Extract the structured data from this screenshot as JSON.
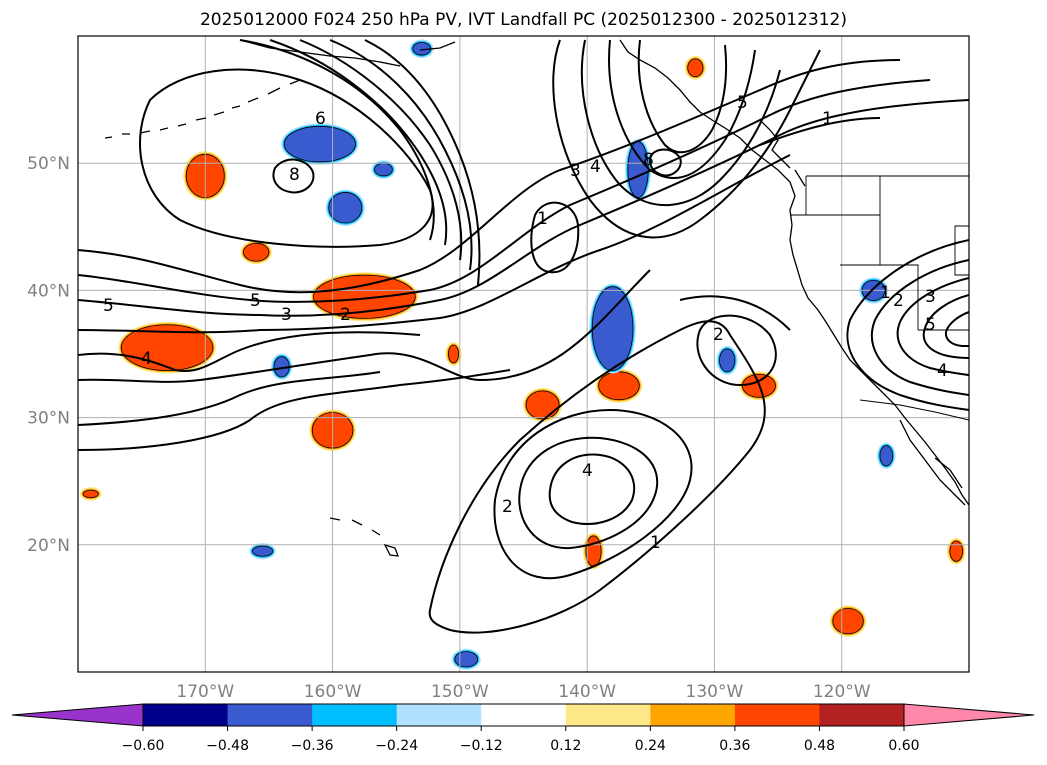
{
  "title": "2025012000 F024 250 hPa PV, IVT Landfall PC (2025012300 - 2025012312)",
  "map": {
    "lon_range": [
      -180,
      -110
    ],
    "lat_range": [
      10,
      60
    ],
    "lon_ticks": [
      {
        "value": -170,
        "label": "170°W"
      },
      {
        "value": -160,
        "label": "160°W"
      },
      {
        "value": -150,
        "label": "150°W"
      },
      {
        "value": -140,
        "label": "140°W"
      },
      {
        "value": -130,
        "label": "130°W"
      },
      {
        "value": -120,
        "label": "120°W"
      }
    ],
    "lat_ticks": [
      {
        "value": 20,
        "label": "20°N"
      },
      {
        "value": 30,
        "label": "30°N"
      },
      {
        "value": 40,
        "label": "40°N"
      },
      {
        "value": 50,
        "label": "50°N"
      }
    ],
    "grid": true,
    "grid_color": "#b0b0b0",
    "tick_label_color": "#808080"
  },
  "colorbar": {
    "extend": "both",
    "under_color": "#9933cc",
    "over_color": "#ff88aa",
    "colors": [
      "#00008b",
      "#3a5bd0",
      "#00bfff",
      "#b0e2ff",
      "#ffffff",
      "#ffe88a",
      "#ffa500",
      "#ff4500",
      "#b22222"
    ],
    "boundaries": [
      -0.6,
      -0.48,
      -0.36,
      -0.24,
      -0.12,
      0.12,
      0.24,
      0.36,
      0.48,
      0.6
    ],
    "tick_labels": [
      "−0.60",
      "−0.48",
      "−0.36",
      "−0.24",
      "−0.12",
      "0.12",
      "0.24",
      "0.36",
      "0.48",
      "0.60"
    ]
  },
  "contour_labels": [
    "1",
    "2",
    "3",
    "4",
    "5",
    "6",
    "8"
  ],
  "blobs": [
    {
      "lon": -170,
      "lat": 49,
      "rlon": 1.5,
      "rlat": 1.7,
      "kind": "pos"
    },
    {
      "lon": -166,
      "lat": 43,
      "rlon": 1.0,
      "rlat": 0.7,
      "kind": "pos"
    },
    {
      "lon": -173,
      "lat": 35.5,
      "rlon": 3.6,
      "rlat": 1.8,
      "kind": "pos"
    },
    {
      "lon": -157.5,
      "lat": 39.5,
      "rlon": 4.0,
      "rlat": 1.7,
      "kind": "pos"
    },
    {
      "lon": -160,
      "lat": 29,
      "rlon": 1.6,
      "rlat": 1.4,
      "kind": "pos"
    },
    {
      "lon": -143.5,
      "lat": 31,
      "rlon": 1.3,
      "rlat": 1.1,
      "kind": "pos"
    },
    {
      "lon": -137.5,
      "lat": 32.5,
      "rlon": 1.6,
      "rlat": 1.1,
      "kind": "pos"
    },
    {
      "lon": -126.5,
      "lat": 32.5,
      "rlon": 1.3,
      "rlat": 0.9,
      "kind": "pos"
    },
    {
      "lon": -119.5,
      "lat": 14,
      "rlon": 1.2,
      "rlat": 1.0,
      "kind": "pos"
    },
    {
      "lon": -139.5,
      "lat": 19.5,
      "rlon": 0.6,
      "rlat": 1.2,
      "kind": "pos"
    },
    {
      "lon": -150.5,
      "lat": 35,
      "rlon": 0.4,
      "rlat": 0.7,
      "kind": "pos"
    },
    {
      "lon": -111,
      "lat": 19.5,
      "rlon": 0.5,
      "rlat": 0.8,
      "kind": "pos"
    },
    {
      "lon": -179,
      "lat": 24,
      "rlon": 0.6,
      "rlat": 0.3,
      "kind": "pos"
    },
    {
      "lon": -131.5,
      "lat": 57.5,
      "rlon": 0.6,
      "rlat": 0.7,
      "kind": "pos"
    },
    {
      "lon": -161,
      "lat": 51.5,
      "rlon": 2.8,
      "rlat": 1.4,
      "kind": "neg"
    },
    {
      "lon": -159,
      "lat": 46.5,
      "rlon": 1.3,
      "rlat": 1.2,
      "kind": "neg"
    },
    {
      "lon": -138,
      "lat": 37,
      "rlon": 1.6,
      "rlat": 3.3,
      "kind": "neg"
    },
    {
      "lon": -136,
      "lat": 49.5,
      "rlon": 0.8,
      "rlat": 2.2,
      "kind": "neg"
    },
    {
      "lon": -129,
      "lat": 34.5,
      "rlon": 0.6,
      "rlat": 0.9,
      "kind": "neg"
    },
    {
      "lon": -116.5,
      "lat": 27,
      "rlon": 0.5,
      "rlat": 0.8,
      "kind": "neg"
    },
    {
      "lon": -165.5,
      "lat": 19.5,
      "rlon": 0.8,
      "rlat": 0.4,
      "kind": "neg"
    },
    {
      "lon": -149.5,
      "lat": 11,
      "rlon": 0.9,
      "rlat": 0.6,
      "kind": "neg"
    },
    {
      "lon": -153,
      "lat": 59,
      "rlon": 0.7,
      "rlat": 0.5,
      "kind": "neg"
    },
    {
      "lon": -164,
      "lat": 34,
      "rlon": 0.6,
      "rlat": 0.8,
      "kind": "neg"
    },
    {
      "lon": -156,
      "lat": 49.5,
      "rlon": 0.7,
      "rlat": 0.5,
      "kind": "neg"
    },
    {
      "lon": -117.5,
      "lat": 40,
      "rlon": 0.9,
      "rlat": 0.8,
      "kind": "neg"
    }
  ]
}
